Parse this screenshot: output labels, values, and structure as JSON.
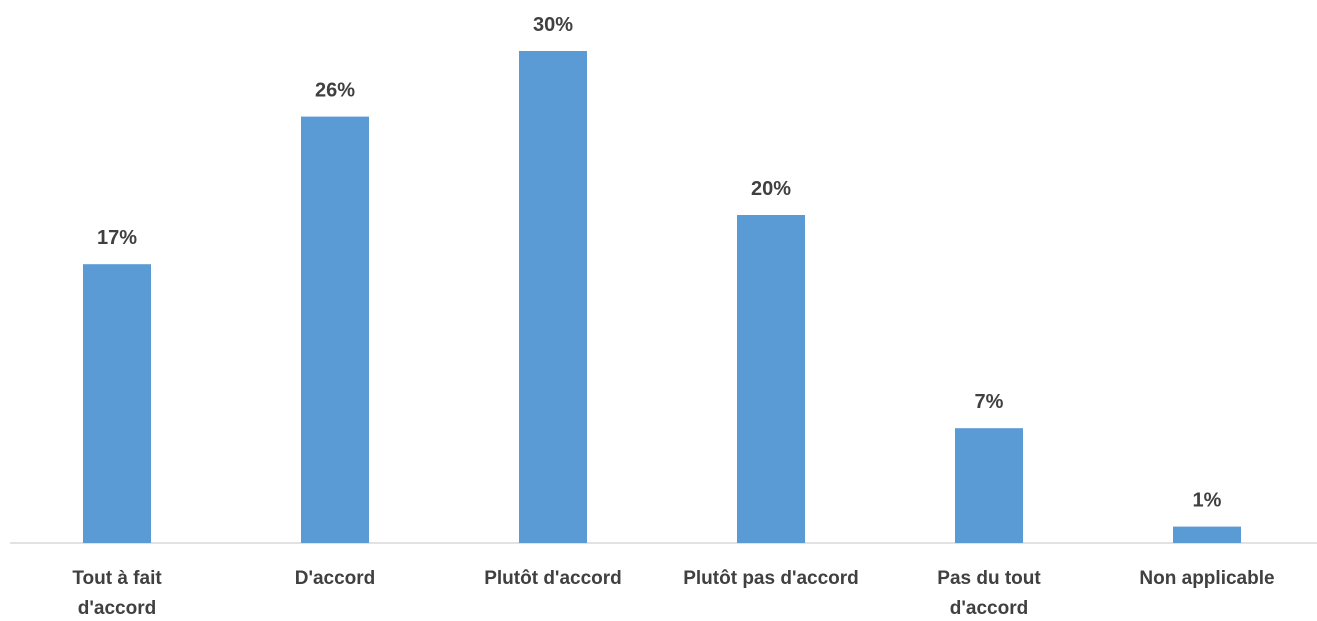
{
  "chart_data": {
    "type": "bar",
    "categories": [
      "Tout à fait d'accord",
      "D'accord",
      "Plutôt d'accord",
      "Plutôt pas d'accord",
      "Pas du tout d'accord",
      "Non applicable"
    ],
    "values": [
      17,
      26,
      30,
      20,
      7,
      1
    ],
    "value_labels": [
      "17%",
      "26%",
      "30%",
      "20%",
      "7%",
      "1%"
    ],
    "color": "#5b9bd5"
  }
}
